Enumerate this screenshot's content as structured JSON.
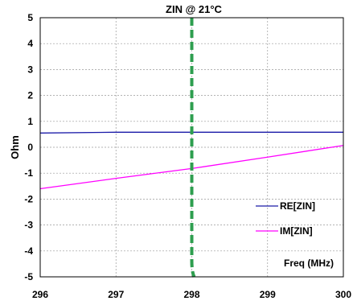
{
  "chart_data": {
    "type": "line",
    "title": "ZIN @ 21°C",
    "xlabel": "Freq (MHz)",
    "ylabel": "Ohm",
    "xlim": [
      296,
      300
    ],
    "ylim": [
      -5,
      5
    ],
    "xticks": [
      296,
      297,
      298,
      299,
      300
    ],
    "xtick_labels": [
      "296",
      "297",
      "298",
      "299",
      "300"
    ],
    "yticks": [
      -5,
      -4,
      -3,
      -2,
      -1,
      0,
      1,
      2,
      3,
      4,
      5
    ],
    "ytick_labels": [
      "-5",
      "-4",
      "-3",
      "-2",
      "-1",
      "0",
      "1",
      "2",
      "3",
      "4",
      "5"
    ],
    "grid": true,
    "legend_position": "bottom-right",
    "series": [
      {
        "name": "RE[ZIN]",
        "color": "#1a1aa8",
        "x": [
          296,
          297,
          298,
          299,
          300
        ],
        "y": [
          0.55,
          0.58,
          0.58,
          0.58,
          0.58
        ]
      },
      {
        "name": "IM[ZIN]",
        "color": "#ff00ff",
        "x": [
          296,
          297,
          298,
          299,
          300
        ],
        "y": [
          -1.6,
          -1.2,
          -0.82,
          -0.38,
          0.07
        ]
      }
    ],
    "marker": {
      "x": 298,
      "color": "#2e9e4f",
      "style": "dashed"
    }
  }
}
